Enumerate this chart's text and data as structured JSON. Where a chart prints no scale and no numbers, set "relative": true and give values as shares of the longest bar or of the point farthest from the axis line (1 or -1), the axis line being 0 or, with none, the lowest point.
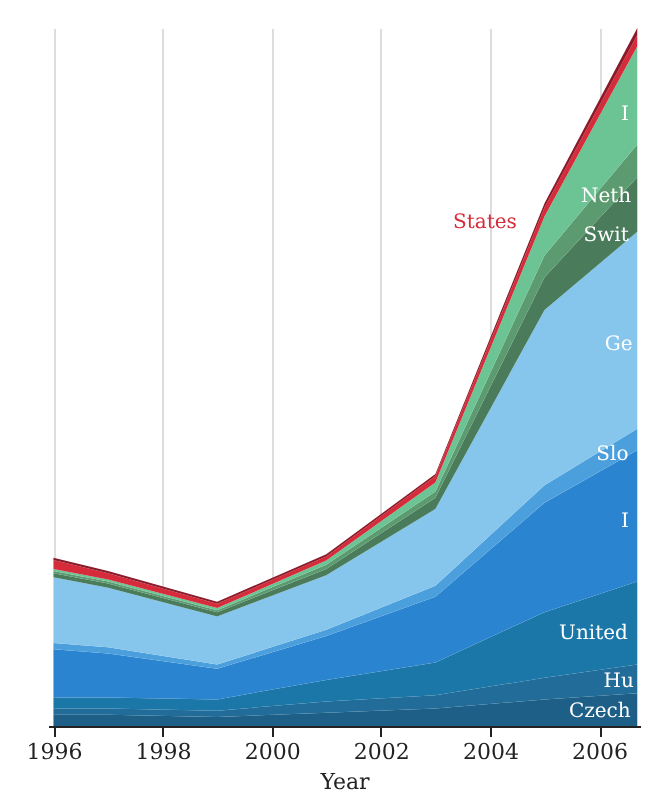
{
  "chart_data": {
    "type": "area",
    "stacked": true,
    "relative": true,
    "xlabel": "Year",
    "grid": "x",
    "x": [
      1996,
      1997,
      1999,
      2001,
      2003,
      2005,
      2006.7
    ],
    "xlim": [
      1995.9,
      2006.75
    ],
    "xticks": [
      1996,
      1998,
      2000,
      2002,
      2004,
      2006
    ],
    "series": [
      {
        "name": "Czech",
        "color": "#1d5f86",
        "values": [
          0.016,
          0.016,
          0.013,
          0.019,
          0.025,
          0.038,
          0.047
        ]
      },
      {
        "name": "Hu",
        "color": "#216c98",
        "values": [
          0.009,
          0.009,
          0.009,
          0.016,
          0.019,
          0.031,
          0.041
        ]
      },
      {
        "name": "United",
        "color": "#1b77a8",
        "values": [
          0.016,
          0.016,
          0.016,
          0.031,
          0.047,
          0.094,
          0.119
        ]
      },
      {
        "name": "I",
        "color": "#2b84d0",
        "values": [
          0.069,
          0.063,
          0.044,
          0.063,
          0.094,
          0.157,
          0.188
        ]
      },
      {
        "name": "Slo",
        "color": "#4b9fdc",
        "values": [
          0.009,
          0.009,
          0.006,
          0.009,
          0.016,
          0.025,
          0.031
        ]
      },
      {
        "name": "Ge",
        "color": "#86c5ec",
        "values": [
          0.094,
          0.085,
          0.069,
          0.078,
          0.11,
          0.251,
          0.282
        ]
      },
      {
        "name": "Swit",
        "color": "#4a7c5c",
        "values": [
          0.006,
          0.006,
          0.006,
          0.009,
          0.016,
          0.047,
          0.078
        ]
      },
      {
        "name": "Neth",
        "color": "#5c9a70",
        "values": [
          0.003,
          0.003,
          0.003,
          0.006,
          0.009,
          0.031,
          0.047
        ]
      },
      {
        "name": "I",
        "color": "#6cc494",
        "values": [
          0.003,
          0.003,
          0.003,
          0.006,
          0.013,
          0.056,
          0.141
        ]
      },
      {
        "name": "States",
        "color": "#d62b3a",
        "values": [
          0.013,
          0.009,
          0.006,
          0.006,
          0.009,
          0.013,
          0.016
        ]
      },
      {
        "color": "#8b1a2a",
        "values": [
          0.003,
          0.003,
          0.003,
          0.003,
          0.003,
          0.006,
          0.01
        ]
      }
    ]
  }
}
